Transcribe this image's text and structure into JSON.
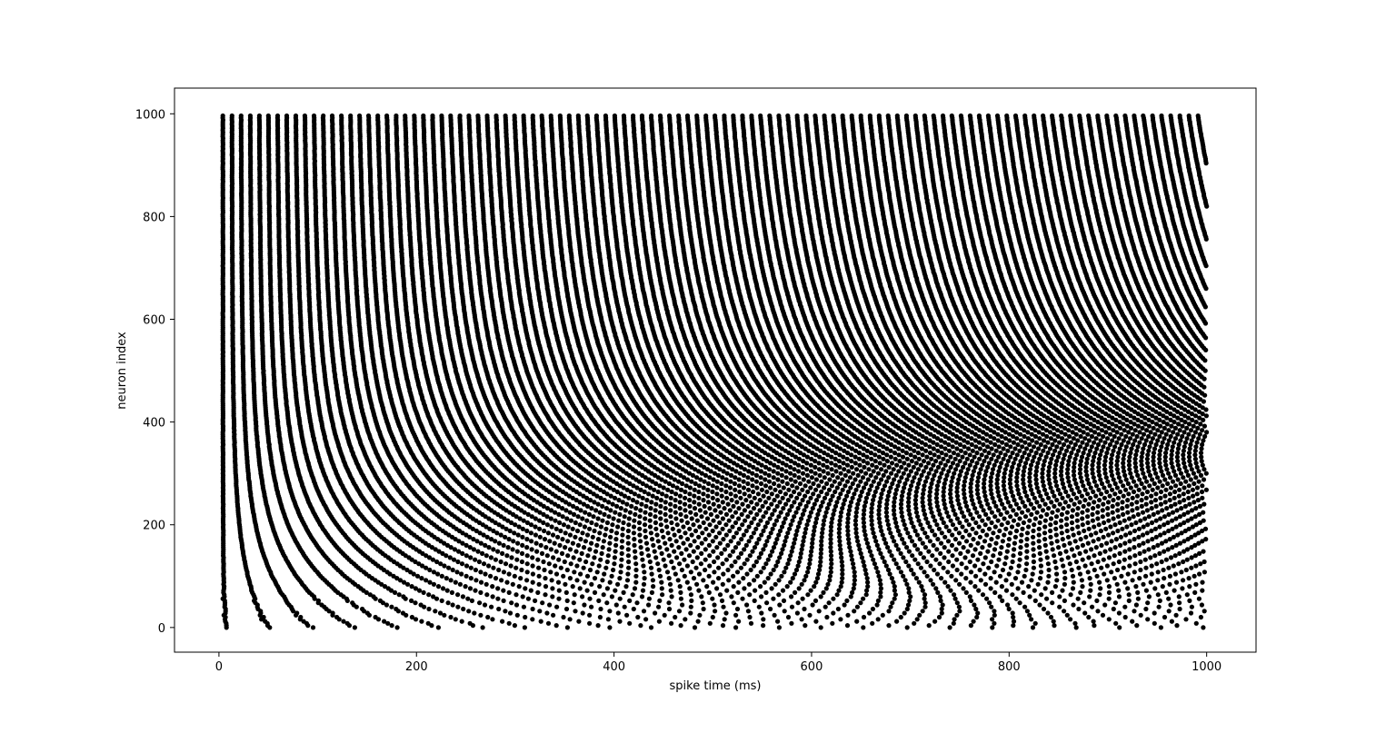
{
  "chart_data": {
    "type": "scatter",
    "title": "",
    "xlabel": "spike time (ms)",
    "ylabel": "neuron index",
    "xlim": [
      -45,
      1050
    ],
    "ylim": [
      -48,
      1050
    ],
    "xticks": [
      0,
      200,
      400,
      600,
      800,
      1000
    ],
    "xtick_labels": [
      "0",
      "200",
      "400",
      "600",
      "800",
      "1000"
    ],
    "yticks": [
      0,
      200,
      400,
      600,
      800,
      1000
    ],
    "ytick_labels": [
      "0",
      "200",
      "400",
      "600",
      "800",
      "1000"
    ],
    "grid": false,
    "legend": "none",
    "marker_color": "#000000",
    "series": [
      {
        "neurons": {
          "start": 0,
          "end": 999
        },
        "spike_time_range_ms": [
          0,
          1000
        ],
        "description": "one row per neuron; each neuron fires periodically, higher-index neurons fire at higher rates"
      }
    ]
  }
}
